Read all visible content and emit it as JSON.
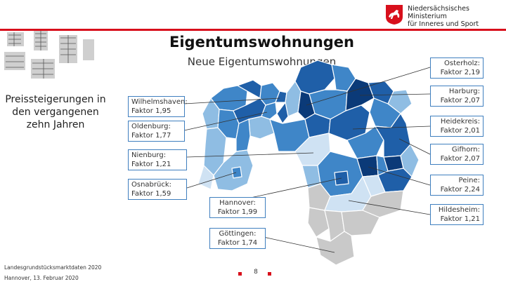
{
  "logo": {
    "text_line1": "Niedersächsisches Ministerium",
    "text_line2": "für Inneres und Sport"
  },
  "slide": {
    "title": "Eigentumswohnungen",
    "subtitle": "Neue Eigentumswohnungen",
    "side_text": "Preissteigerungen in den vergangenen  zehn Jahren"
  },
  "labels": {
    "wilhelmshaven": {
      "name": "Wilhelmshaven:",
      "value": "Faktor 1,95"
    },
    "oldenburg": {
      "name": "Oldenburg:",
      "value": "Faktor 1,77"
    },
    "nienburg": {
      "name": "Nienburg:",
      "value": "Faktor 1,21"
    },
    "osnabrueck": {
      "name": "Osnabrück:",
      "value": "Faktor 1,59"
    },
    "hannover": {
      "name": "Hannover:",
      "value": "Faktor 1,99"
    },
    "goettingen": {
      "name": "Göttingen:",
      "value": "Faktor 1,74"
    },
    "osterholz": {
      "name": "Osterholz:",
      "value": "Faktor 2,19"
    },
    "harburg": {
      "name": "Harburg:",
      "value": "Faktor 2,07"
    },
    "heidekreis": {
      "name": "Heidekreis:",
      "value": "Faktor 2,01"
    },
    "gifhorn": {
      "name": "Gifhorn:",
      "value": "Faktor 2,07"
    },
    "peine": {
      "name": "Peine:",
      "value": "Faktor 2,24"
    },
    "hildesheim": {
      "name": "Hildesheim:",
      "value": "Faktor 1,21"
    }
  },
  "footer": {
    "source": "Landesgrundstücksmarktdaten 2020",
    "place_date": "Hannover,  13. Februar 2020",
    "page_number": "8"
  },
  "colors": {
    "brand_red": "#d8101c",
    "label_border": "#3f7fbf",
    "map_darkest": "#0b3a78",
    "map_dark": "#1f5fa8",
    "map_mid": "#3f86c8",
    "map_light": "#8fbde3",
    "map_lightest": "#cfe2f3",
    "map_nodata": "#c9c9c9"
  }
}
